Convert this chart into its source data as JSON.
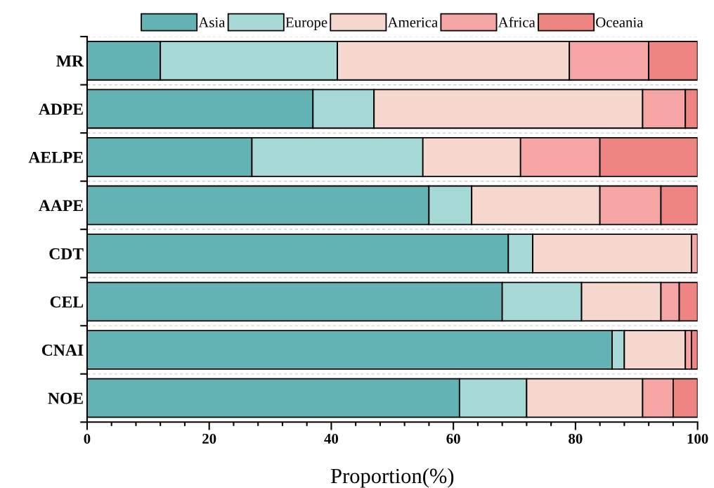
{
  "chart_data": {
    "type": "bar",
    "orientation": "horizontal",
    "stacked": true,
    "xlabel": "Proportion(%)",
    "categories": [
      "MR",
      "ADPE",
      "AELPE",
      "AAPE",
      "CDT",
      "CEL",
      "CNAI",
      "NOE"
    ],
    "series": [
      {
        "name": "Asia",
        "color": "#64b3b4",
        "values": [
          12,
          37,
          27,
          56,
          69,
          68,
          86,
          61
        ]
      },
      {
        "name": "Europe",
        "color": "#a6d8d6",
        "values": [
          29,
          10,
          28,
          7,
          4,
          13,
          2,
          11
        ]
      },
      {
        "name": "America",
        "color": "#f6d7cd",
        "values": [
          38,
          44,
          16,
          21,
          26,
          13,
          10,
          19
        ]
      },
      {
        "name": "Africa",
        "color": "#f6a5a5",
        "values": [
          13,
          7,
          13,
          10,
          1,
          3,
          1,
          5
        ]
      },
      {
        "name": "Oceania",
        "color": "#ee8582",
        "values": [
          8,
          2,
          16,
          6,
          null,
          3,
          1,
          4
        ]
      }
    ],
    "xlim": [
      0,
      100
    ],
    "xticks": [
      0,
      20,
      40,
      60,
      80,
      100
    ],
    "grid": "y",
    "legend": "top"
  }
}
